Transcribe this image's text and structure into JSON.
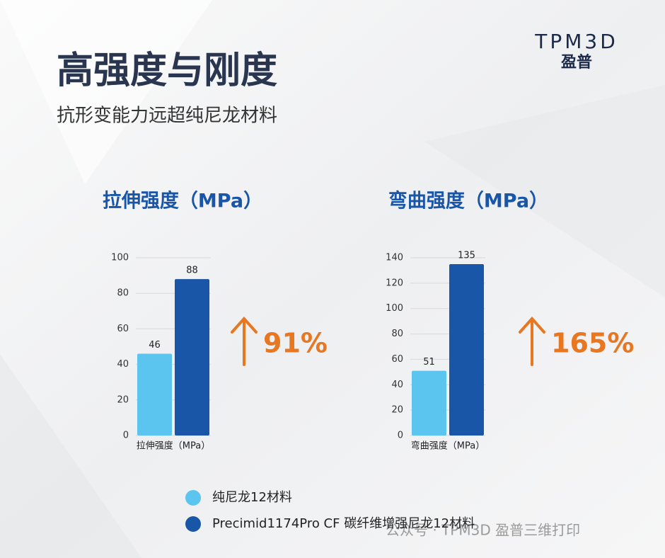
{
  "header": {
    "title": "高强度与刚度",
    "subtitle": "抗形变能力远超纯尼龙材料"
  },
  "logo": {
    "text": "TPM3D",
    "subtext": "盈普"
  },
  "chart_data": [
    {
      "type": "bar",
      "title": "拉伸强度（MPa）",
      "categories": [
        "拉伸强度（MPa）"
      ],
      "series": [
        {
          "name": "纯尼龙12材料",
          "color": "#5bc4ef",
          "values": [
            46
          ]
        },
        {
          "name": "Precimid1174Pro CF 碳纤维增强尼龙12材料",
          "color": "#1a56a8",
          "values": [
            88
          ]
        }
      ],
      "ylim": [
        0,
        100
      ],
      "yticks": [
        0,
        20,
        40,
        60,
        80,
        100
      ],
      "grid": true,
      "annotation": "91%"
    },
    {
      "type": "bar",
      "title": "弯曲强度（MPa）",
      "categories": [
        "弯曲强度（MPa）"
      ],
      "series": [
        {
          "color": "#5bc4ef",
          "values": [
            51
          ]
        },
        {
          "color": "#1a56a8",
          "values": [
            135
          ]
        }
      ],
      "ylim": [
        0,
        140
      ],
      "yticks": [
        0,
        20,
        40,
        60,
        80,
        100,
        120,
        140
      ],
      "grid": true,
      "annotation": "165%"
    }
  ],
  "watermark": "公众号 · TPM3D 盈普三维打印"
}
